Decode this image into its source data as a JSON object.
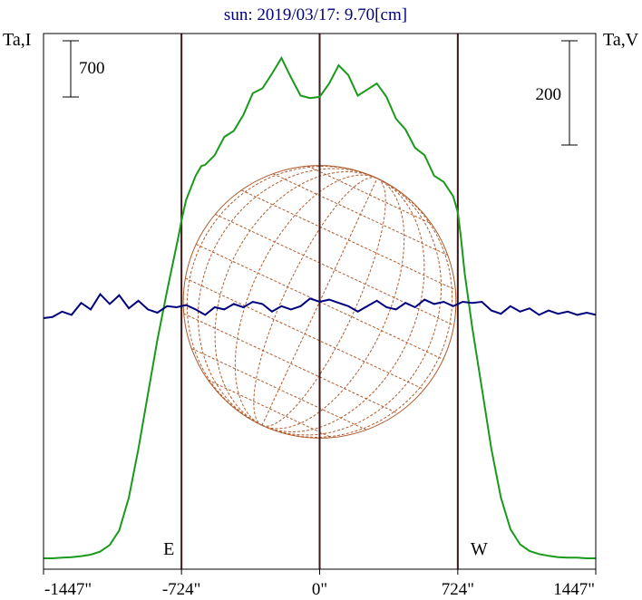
{
  "chart_data": {
    "type": "line",
    "title": "sun: 2019/03/17: 9.70[cm]",
    "left_axis_label": "Ta,I",
    "right_axis_label": "Ta,V",
    "xlim": [
      -1447,
      1447
    ],
    "x_ticks": [
      {
        "value": -1447,
        "label": "-1447\""
      },
      {
        "value": -724,
        "label": "-724\""
      },
      {
        "value": 0,
        "label": "0\""
      },
      {
        "value": 724,
        "label": "724\""
      },
      {
        "value": 1447,
        "label": "1447\""
      }
    ],
    "limb_markers": [
      {
        "value": -724,
        "label": "E"
      },
      {
        "value": 0,
        "label": ""
      },
      {
        "value": 724,
        "label": "W"
      }
    ],
    "scale_bars": [
      {
        "series": "I",
        "label": "700",
        "value": 700
      },
      {
        "series": "V",
        "label": "200",
        "value": 200
      }
    ],
    "series": [
      {
        "id": "I",
        "color": "#1a9a1a",
        "x": [
          -1447,
          -1400,
          -1350,
          -1300,
          -1250,
          -1200,
          -1150,
          -1100,
          -1050,
          -1000,
          -950,
          -900,
          -850,
          -800,
          -760,
          -740,
          -724,
          -700,
          -650,
          -620,
          -600,
          -550,
          -500,
          -450,
          -400,
          -350,
          -300,
          -250,
          -200,
          -150,
          -100,
          -50,
          0,
          50,
          100,
          150,
          200,
          250,
          300,
          350,
          400,
          450,
          500,
          550,
          600,
          650,
          700,
          724,
          740,
          760,
          800,
          850,
          900,
          950,
          1000,
          1050,
          1100,
          1150,
          1200,
          1250,
          1300,
          1350,
          1400,
          1447
        ],
        "values": [
          0,
          0,
          5,
          10,
          18,
          30,
          55,
          110,
          230,
          500,
          900,
          1350,
          1800,
          2200,
          2500,
          2650,
          2780,
          2950,
          3150,
          3230,
          3240,
          3320,
          3470,
          3520,
          3650,
          3830,
          3870,
          3990,
          4120,
          3960,
          3810,
          3790,
          3800,
          3910,
          4060,
          3980,
          3810,
          3860,
          3910,
          3800,
          3620,
          3530,
          3380,
          3320,
          3150,
          3100,
          2980,
          2850,
          2650,
          2350,
          1900,
          1400,
          900,
          500,
          240,
          115,
          60,
          35,
          20,
          10,
          5,
          5,
          0,
          0
        ]
      },
      {
        "id": "V",
        "color": "#00007f",
        "x": [
          -1447,
          -1400,
          -1350,
          -1300,
          -1250,
          -1200,
          -1150,
          -1100,
          -1050,
          -1000,
          -950,
          -900,
          -850,
          -800,
          -750,
          -700,
          -650,
          -600,
          -550,
          -500,
          -450,
          -400,
          -350,
          -300,
          -250,
          -200,
          -150,
          -100,
          -50,
          0,
          50,
          100,
          150,
          200,
          250,
          300,
          350,
          400,
          450,
          500,
          550,
          600,
          650,
          700,
          750,
          800,
          850,
          900,
          950,
          1000,
          1050,
          1100,
          1150,
          1200,
          1250,
          1300,
          1350,
          1400,
          1447
        ],
        "values": [
          0,
          1,
          6,
          3,
          14,
          8,
          22,
          13,
          21,
          9,
          16,
          8,
          5,
          11,
          10,
          12,
          8,
          3,
          10,
          8,
          13,
          10,
          15,
          13,
          6,
          11,
          8,
          11,
          18,
          15,
          17,
          14,
          11,
          6,
          11,
          16,
          10,
          8,
          14,
          10,
          17,
          13,
          15,
          11,
          15,
          14,
          15,
          7,
          4,
          11,
          6,
          9,
          3,
          7,
          4,
          6,
          3,
          5,
          3
        ]
      }
    ],
    "disk_grid": {
      "tilt_deg": -25,
      "latitudes_deg": [
        -60,
        -45,
        -30,
        -15,
        0,
        15,
        30,
        45,
        60
      ],
      "longitudes_deg": [
        -75,
        -60,
        -45,
        -30,
        -15,
        0,
        15,
        30,
        45,
        60,
        75
      ],
      "color": "#b05a2a"
    },
    "colors": {
      "frame": "#000000",
      "limb_lines": "#3a1a1a",
      "title": "#00007f",
      "text": "#000000"
    }
  }
}
